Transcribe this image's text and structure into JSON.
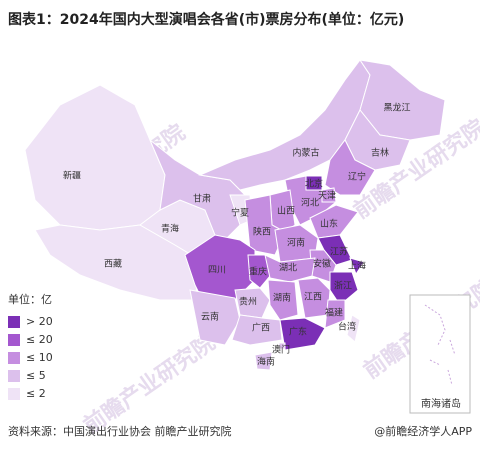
{
  "header": {
    "title": "图表1：2024年国内大型演唱会各省(市)票房分布(单位：亿元)"
  },
  "legend": {
    "title": "单位：亿",
    "items": [
      {
        "label": "> 20",
        "color": "#7b2fb6"
      },
      {
        "label": "≤ 20",
        "color": "#a457cf"
      },
      {
        "label": "≤ 10",
        "color": "#c58ee0"
      },
      {
        "label": "≤ 5",
        "color": "#dcc0ec"
      },
      {
        "label": "≤ 2",
        "color": "#efe3f6"
      }
    ]
  },
  "provinces": [
    {
      "label": "新疆",
      "level": 4
    },
    {
      "label": "西藏",
      "level": 4
    },
    {
      "label": "青海",
      "level": 4
    },
    {
      "label": "甘肃",
      "level": 3
    },
    {
      "label": "内蒙古",
      "level": 3
    },
    {
      "label": "黑龙江",
      "level": 3
    },
    {
      "label": "吉林",
      "level": 3
    },
    {
      "label": "辽宁",
      "level": 2
    },
    {
      "label": "北京",
      "level": 0
    },
    {
      "label": "天津",
      "level": 2
    },
    {
      "label": "河北",
      "level": 2
    },
    {
      "label": "宁夏",
      "level": 4
    },
    {
      "label": "山西",
      "level": 2
    },
    {
      "label": "山东",
      "level": 2
    },
    {
      "label": "陕西",
      "level": 2
    },
    {
      "label": "河南",
      "level": 2
    },
    {
      "label": "江苏",
      "level": 0
    },
    {
      "label": "上海",
      "level": 0
    },
    {
      "label": "安徽",
      "level": 2
    },
    {
      "label": "四川",
      "level": 1
    },
    {
      "label": "重庆",
      "level": 1
    },
    {
      "label": "湖北",
      "level": 2
    },
    {
      "label": "浙江",
      "level": 0
    },
    {
      "label": "贵州",
      "level": 3
    },
    {
      "label": "湖南",
      "level": 2
    },
    {
      "label": "江西",
      "level": 2
    },
    {
      "label": "福建",
      "level": 2
    },
    {
      "label": "云南",
      "level": 3
    },
    {
      "label": "广西",
      "level": 3
    },
    {
      "label": "广东",
      "level": 0
    },
    {
      "label": "台湾",
      "level": 4
    },
    {
      "label": "澳门",
      "level": 3
    },
    {
      "label": "海南",
      "level": 3
    }
  ],
  "inset": {
    "label": "南海诸岛"
  },
  "watermark": "前瞻产业研究院",
  "footer": {
    "source": "资料来源：中国演出行业协会 前瞻产业研究院",
    "brand": "@前瞻经济学人APP"
  }
}
